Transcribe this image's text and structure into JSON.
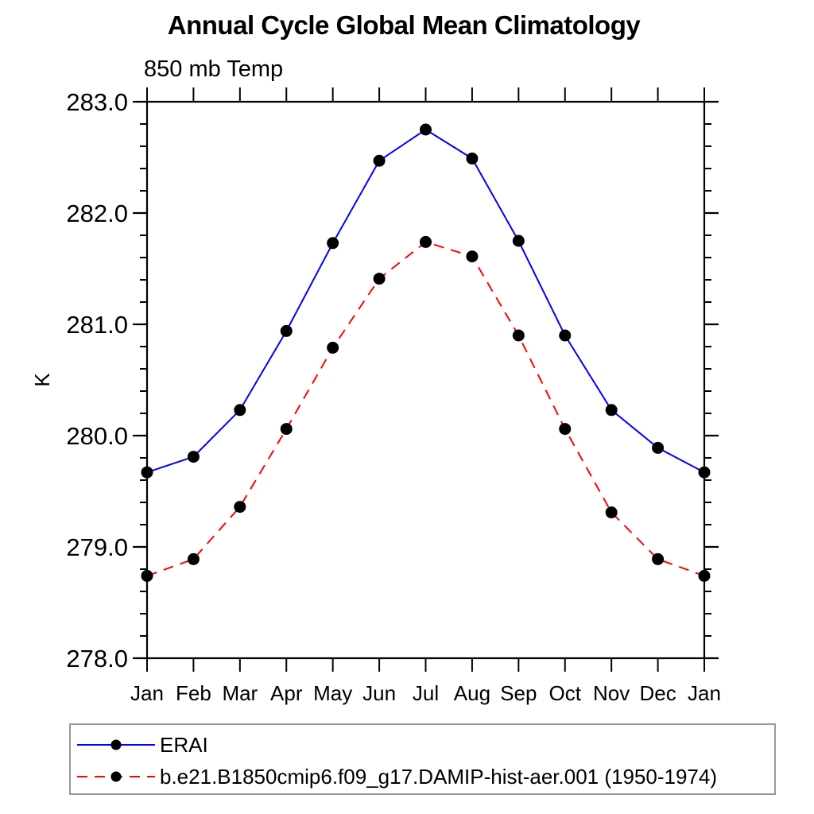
{
  "header": {
    "title": "Annual Cycle Global Mean Climatology",
    "subtitle": "850 mb Temp"
  },
  "chart_data": {
    "type": "line",
    "title": "Annual Cycle Global Mean Climatology",
    "subtitle": "850 mb Temp",
    "xlabel": "",
    "ylabel": "K",
    "categories": [
      "Jan",
      "Feb",
      "Mar",
      "Apr",
      "May",
      "Jun",
      "Jul",
      "Aug",
      "Sep",
      "Oct",
      "Nov",
      "Dec",
      "Jan"
    ],
    "ylim": [
      278.0,
      283.0
    ],
    "ytick_major_interval": 1.0,
    "ytick_minor_interval": 0.2,
    "ytick_labels": [
      "283.0",
      "282.0",
      "281.0",
      "280.0",
      "279.0",
      "278.0"
    ],
    "grid": false,
    "legend_position": "bottom-left",
    "series": [
      {
        "name": "ERAI",
        "color": "#0000ff",
        "line_style": "solid",
        "marker": "filled-circle",
        "marker_color": "#000000",
        "values": [
          279.67,
          279.81,
          280.23,
          280.94,
          281.73,
          282.47,
          282.75,
          282.49,
          281.75,
          280.9,
          280.23,
          279.89,
          279.67
        ]
      },
      {
        "name": "b.e21.B1850cmip6.f09_g17.DAMIP-hist-aer.001 (1950-1974)",
        "color": "#ff0000",
        "line_style": "dashed",
        "marker": "filled-circle",
        "marker_color": "#000000",
        "values": [
          278.74,
          278.89,
          279.36,
          280.06,
          280.79,
          281.41,
          281.74,
          281.61,
          280.9,
          280.06,
          279.31,
          278.89,
          278.74
        ]
      }
    ]
  },
  "colors": {
    "axis": "#000000",
    "text": "#000000",
    "legend_border": "#999999",
    "background": "#ffffff"
  }
}
